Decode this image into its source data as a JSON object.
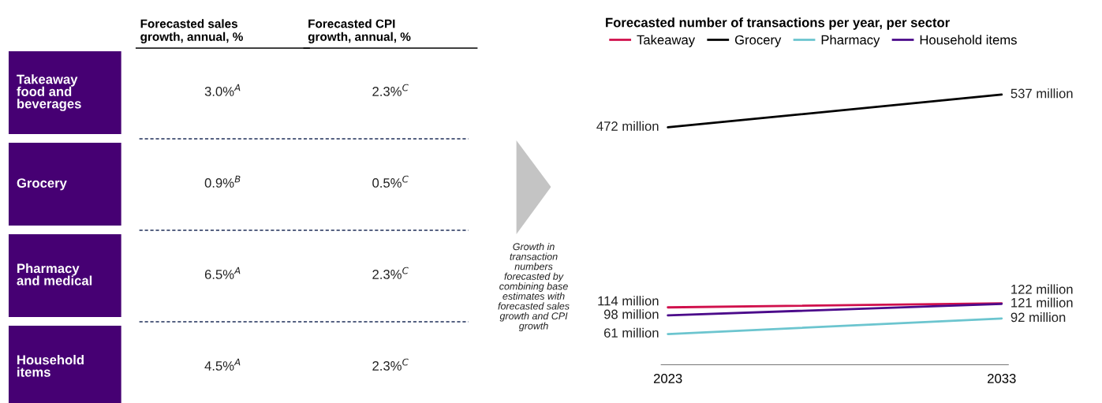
{
  "chart_data": [
    {
      "type": "other",
      "categories": [
        "Takeaway\nfood and\nbeverages",
        "Grocery",
        "Pharmacy\nand medical",
        "Household\nitems"
      ],
      "color": "#460073",
      "annotations": [
        "Forecasted sales\ngrowth, annual, %",
        "Forecasted CPI\ngrowth, annual, %",
        "3.0%$^{A}$",
        "2.3%$^{C}$",
        "0.9%$^{B}$",
        "0.5%$^{C}$",
        "6.5%$^{A}$",
        "2.3%$^{C}$",
        "4.5%$^{A}$",
        "2.3%$^{C}$",
        "Growth in\ntransaction\nnumbers\nforecasted by\ncombining base\nestimates with\nforecasted sales\ngrowth and CPI\ngrowth"
      ]
    },
    {
      "type": "line",
      "title": "Forecasted number of transactions per year, per sector",
      "categories": [
        "2023",
        "2033"
      ],
      "series": [
        {
          "name": "Takeaway",
          "color": "#d0104c",
          "values": [
            114,
            122
          ],
          "value_labels": [
            "114 million",
            "122 million"
          ]
        },
        {
          "name": "Grocery",
          "color": "#000000",
          "values": [
            472,
            537
          ],
          "value_labels": [
            "472 million",
            "537 million"
          ]
        },
        {
          "name": "Pharmacy",
          "color": "#6cc5cf",
          "values": [
            61,
            92
          ],
          "value_labels": [
            "61 million",
            "92 million"
          ]
        },
        {
          "name": "Household items",
          "color": "#4b0a8a",
          "values": [
            98,
            121
          ],
          "value_labels": [
            "98 million",
            "121 million"
          ]
        }
      ],
      "legend": "top left",
      "grid": false,
      "marker": "none",
      "line_style": "solid"
    }
  ]
}
